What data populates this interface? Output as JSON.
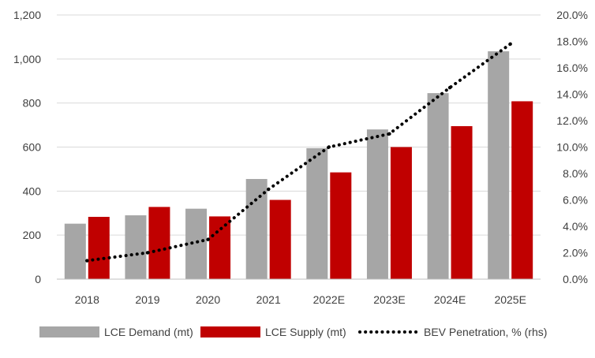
{
  "chart_data": {
    "type": "bar",
    "title": "",
    "categories": [
      "2018",
      "2019",
      "2020",
      "2021",
      "2022E",
      "2023E",
      "2024E",
      "2025E"
    ],
    "series": [
      {
        "name": "LCE Demand (mt)",
        "type": "bar",
        "axis": "left",
        "color": "#a6a6a6",
        "values": [
          252,
          290,
          320,
          455,
          595,
          680,
          845,
          1035
        ]
      },
      {
        "name": "LCE Supply (mt)",
        "type": "bar",
        "axis": "left",
        "color": "#c00000",
        "values": [
          283,
          328,
          285,
          360,
          485,
          600,
          695,
          808
        ]
      },
      {
        "name": "BEV Penetration, % (rhs)",
        "type": "line",
        "style": "dotted",
        "axis": "right",
        "color": "#000000",
        "values": [
          1.4,
          2.0,
          3.0,
          6.8,
          10.0,
          11.0,
          14.5,
          17.8
        ]
      }
    ],
    "y_left": {
      "ylim": [
        0,
        1200
      ],
      "ticks": [
        "0",
        "200",
        "400",
        "600",
        "800",
        "1,000",
        "1,200"
      ]
    },
    "y_right": {
      "ylim": [
        0,
        20
      ],
      "ticks": [
        "0.0%",
        "2.0%",
        "4.0%",
        "6.0%",
        "8.0%",
        "10.0%",
        "12.0%",
        "14.0%",
        "16.0%",
        "18.0%",
        "20.0%"
      ]
    },
    "legend_position": "bottom",
    "grid": "horizontal"
  }
}
